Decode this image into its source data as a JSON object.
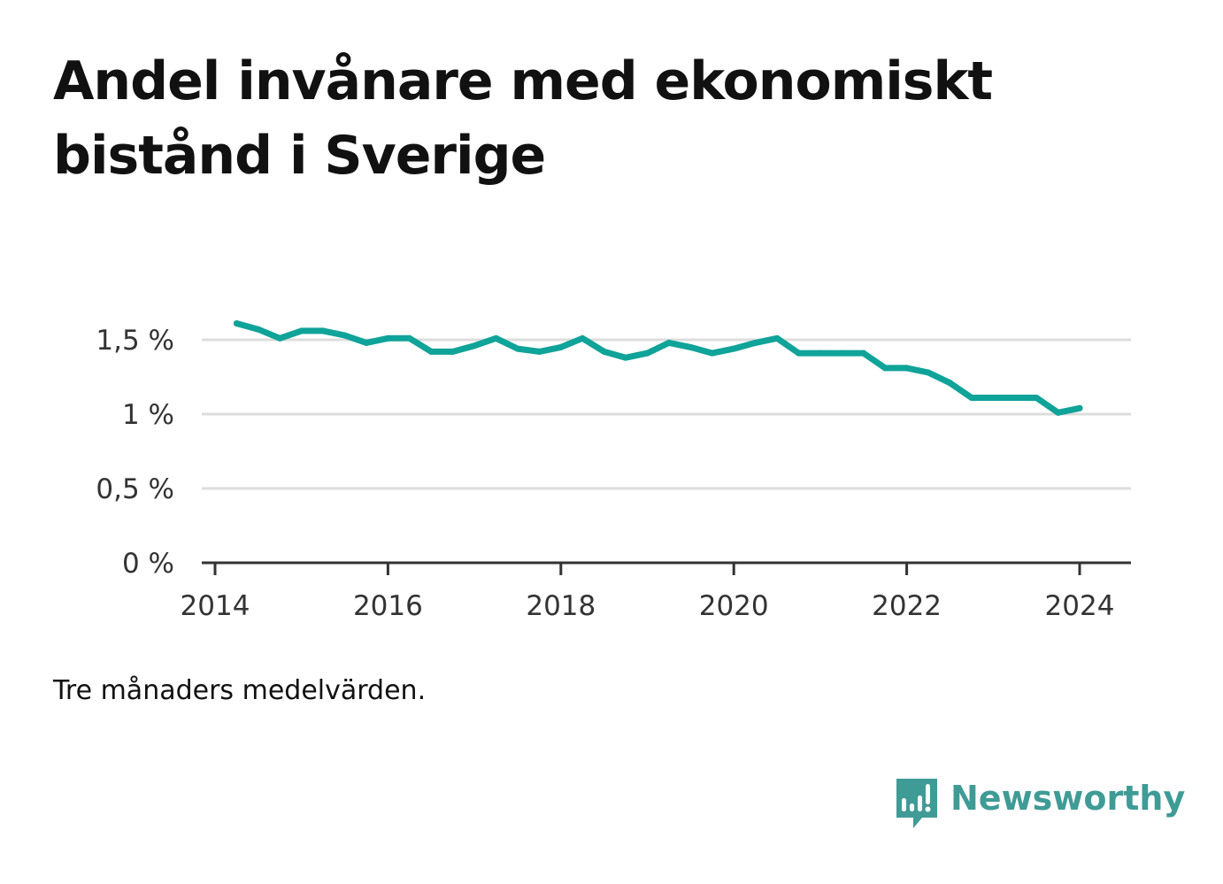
{
  "title": "Andel invånare med ekonomiskt bistånd i Sverige",
  "note": "Tre månaders medelvärden.",
  "brand": {
    "name": "Newsworthy",
    "icon": "bar-chart-speech-bubble-icon",
    "color": "#3f9b96"
  },
  "colors": {
    "line": "#0fa399",
    "grid": "#dddddd",
    "axis": "#333333"
  },
  "chart_data": {
    "type": "line",
    "title": "Andel invånare med ekonomiskt bistånd i Sverige",
    "xlabel": "",
    "ylabel": "",
    "x_ticks": [
      "2014",
      "2016",
      "2018",
      "2020",
      "2022",
      "2024"
    ],
    "y_ticks": [
      {
        "value": 0,
        "label": "0 %"
      },
      {
        "value": 0.5,
        "label": "0,5 %"
      },
      {
        "value": 1,
        "label": "1 %"
      },
      {
        "value": 1.5,
        "label": "1,5 %"
      }
    ],
    "xlim": [
      "2014-01",
      "2024-08"
    ],
    "ylim": [
      0,
      1.75
    ],
    "grid": true,
    "legend": "none",
    "series": [
      {
        "points": [
          [
            "2014-04",
            1.61
          ],
          [
            "2014-07",
            1.57
          ],
          [
            "2014-10",
            1.51
          ],
          [
            "2015-01",
            1.56
          ],
          [
            "2015-04",
            1.56
          ],
          [
            "2015-07",
            1.53
          ],
          [
            "2015-10",
            1.48
          ],
          [
            "2016-01",
            1.51
          ],
          [
            "2016-04",
            1.51
          ],
          [
            "2016-07",
            1.42
          ],
          [
            "2016-10",
            1.42
          ],
          [
            "2017-01",
            1.46
          ],
          [
            "2017-04",
            1.51
          ],
          [
            "2017-07",
            1.44
          ],
          [
            "2017-10",
            1.42
          ],
          [
            "2018-01",
            1.45
          ],
          [
            "2018-04",
            1.51
          ],
          [
            "2018-07",
            1.42
          ],
          [
            "2018-10",
            1.38
          ],
          [
            "2019-01",
            1.41
          ],
          [
            "2019-04",
            1.48
          ],
          [
            "2019-07",
            1.45
          ],
          [
            "2019-10",
            1.41
          ],
          [
            "2020-01",
            1.44
          ],
          [
            "2020-04",
            1.48
          ],
          [
            "2020-07",
            1.51
          ],
          [
            "2020-10",
            1.41
          ],
          [
            "2021-01",
            1.41
          ],
          [
            "2021-04",
            1.41
          ],
          [
            "2021-07",
            1.41
          ],
          [
            "2021-10",
            1.31
          ],
          [
            "2022-01",
            1.31
          ],
          [
            "2022-04",
            1.28
          ],
          [
            "2022-07",
            1.21
          ],
          [
            "2022-10",
            1.11
          ],
          [
            "2023-01",
            1.11
          ],
          [
            "2023-04",
            1.11
          ],
          [
            "2023-07",
            1.11
          ],
          [
            "2023-10",
            1.01
          ],
          [
            "2024-01",
            1.04
          ]
        ]
      }
    ]
  }
}
